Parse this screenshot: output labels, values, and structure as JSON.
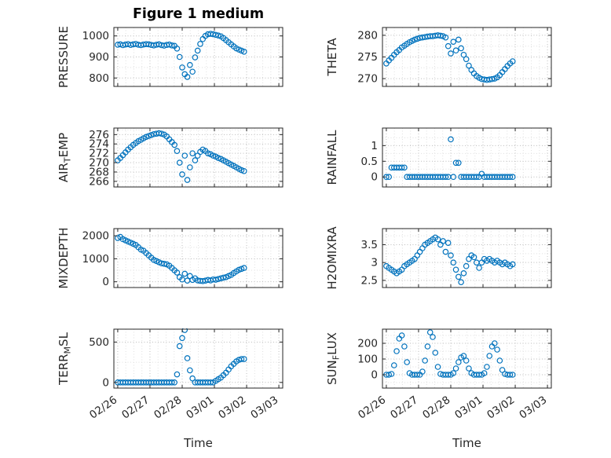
{
  "figure": {
    "title": "Figure 1 medium",
    "xlabel": "Time",
    "marker_color": "#0072BD",
    "axis_color": "#262626",
    "grid_color": "#b5b5b5",
    "minor_grid_color": "#dcdcdc"
  },
  "chart_data": {
    "type": "scatter",
    "title": "Figure 1 medium",
    "xlabel": "Time",
    "legend": "none",
    "grid": "on",
    "x_tick_labels": [
      "02/26",
      "02/27",
      "02/28",
      "03/01",
      "03/02",
      "03/03"
    ],
    "x_ticks": [
      0,
      1,
      2,
      3,
      4,
      5
    ],
    "xlim": [
      -0.12,
      5.12
    ],
    "x": [
      0,
      0.08,
      0.16,
      0.24,
      0.32,
      0.4,
      0.48,
      0.56,
      0.64,
      0.72,
      0.8,
      0.88,
      0.96,
      1.04,
      1.12,
      1.2,
      1.28,
      1.36,
      1.44,
      1.52,
      1.6,
      1.68,
      1.76,
      1.84,
      1.92,
      2,
      2.08,
      2.16,
      2.24,
      2.32,
      2.4,
      2.48,
      2.56,
      2.64,
      2.72,
      2.8,
      2.88,
      2.96,
      3.04,
      3.12,
      3.2,
      3.28,
      3.36,
      3.44,
      3.52,
      3.6,
      3.68,
      3.76,
      3.84,
      3.92
    ],
    "subplots": [
      {
        "name": "PRESSURE",
        "ylabel": [
          {
            "t": "PRESSURE"
          }
        ],
        "ylim": [
          760,
          1040
        ],
        "ytick_vals": [
          800,
          900,
          1000
        ],
        "ytick_labels": [
          "800",
          "900",
          "1000"
        ],
        "y": [
          958,
          960,
          956,
          959,
          961,
          957,
          960,
          962,
          958,
          956,
          959,
          961,
          960,
          957,
          955,
          958,
          960,
          956,
          954,
          957,
          959,
          955,
          953,
          940,
          900,
          850,
          818,
          805,
          862,
          830,
          898,
          930,
          962,
          985,
          1000,
          1008,
          1010,
          1008,
          1005,
          1002,
          998,
          990,
          980,
          970,
          960,
          950,
          941,
          935,
          930,
          925
        ]
      },
      {
        "name": "THETA",
        "ylabel": [
          {
            "t": "THETA"
          }
        ],
        "ylim": [
          268.2,
          281.8
        ],
        "ytick_vals": [
          270,
          275,
          280
        ],
        "ytick_labels": [
          "270",
          "275",
          "280"
        ],
        "y": [
          273.5,
          274.2,
          274.8,
          275.5,
          276.1,
          276.6,
          277.2,
          277.6,
          278.0,
          278.4,
          278.7,
          279.0,
          279.2,
          279.4,
          279.5,
          279.6,
          279.7,
          279.8,
          279.8,
          279.9,
          280.0,
          279.9,
          279.8,
          279.5,
          277.5,
          275.8,
          278.5,
          276.5,
          279.0,
          277.0,
          275.5,
          274.5,
          273.0,
          272.0,
          271.2,
          270.6,
          270.2,
          269.9,
          269.8,
          269.7,
          269.8,
          269.9,
          270.0,
          270.3,
          270.8,
          271.5,
          272.2,
          272.9,
          273.5,
          274.0
        ]
      },
      {
        "name": "AIR_TEMP",
        "ylabel": [
          {
            "t": "AIR"
          },
          {
            "t": "T",
            "sub": true
          },
          {
            "t": "EMP"
          }
        ],
        "ylim": [
          264.8,
          277.4
        ],
        "ytick_vals": [
          266,
          268,
          270,
          272,
          274,
          276
        ],
        "ytick_labels": [
          "266",
          "268",
          "270",
          "272",
          "274",
          "276"
        ],
        "y": [
          270.5,
          271.0,
          271.6,
          272.2,
          272.8,
          273.3,
          273.8,
          274.2,
          274.6,
          274.9,
          275.2,
          275.5,
          275.7,
          275.9,
          276.1,
          276.2,
          276.3,
          276.2,
          276.0,
          275.6,
          275.0,
          274.4,
          273.8,
          272.5,
          270.0,
          267.5,
          271.5,
          266.3,
          269.0,
          272.0,
          270.5,
          271.5,
          272.3,
          272.8,
          272.5,
          272.0,
          271.8,
          271.5,
          271.3,
          271.0,
          270.8,
          270.5,
          270.2,
          269.9,
          269.6,
          269.3,
          269.0,
          268.7,
          268.4,
          268.2
        ]
      },
      {
        "name": "RAINFALL",
        "ylabel": [
          {
            "t": "RAINFALL"
          }
        ],
        "ylim": [
          -0.32,
          1.56
        ],
        "ytick_vals": [
          0,
          0.5,
          1
        ],
        "ytick_labels": [
          "0",
          "0.5",
          "1"
        ],
        "y": [
          0,
          0,
          0.3,
          0.3,
          0.3,
          0.3,
          0.3,
          0.3,
          0,
          0,
          0,
          0,
          0,
          0,
          0,
          0,
          0,
          0,
          0,
          0,
          0,
          0,
          0,
          0,
          0,
          1.2,
          0,
          0.45,
          0.45,
          0,
          0,
          0,
          0,
          0,
          0,
          0,
          0,
          0.1,
          0,
          0,
          0,
          0,
          0,
          0,
          0,
          0,
          0,
          0,
          0,
          0
        ]
      },
      {
        "name": "MIXDEPTH",
        "ylabel": [
          {
            "t": "MIXDEPTH"
          }
        ],
        "ylim": [
          -250,
          2310
        ],
        "ytick_vals": [
          0,
          1000,
          2000
        ],
        "ytick_labels": [
          "0",
          "1000",
          "2000"
        ],
        "y": [
          1900,
          1950,
          1850,
          1800,
          1750,
          1700,
          1650,
          1600,
          1500,
          1400,
          1350,
          1250,
          1150,
          1050,
          950,
          900,
          850,
          800,
          780,
          760,
          700,
          600,
          500,
          400,
          200,
          100,
          350,
          50,
          250,
          80,
          150,
          60,
          40,
          30,
          50,
          80,
          60,
          100,
          90,
          120,
          150,
          180,
          200,
          250,
          300,
          380,
          450,
          520,
          560,
          600
        ]
      },
      {
        "name": "H2OMIXRA",
        "ylabel": [
          {
            "t": "H2OMIXRA"
          }
        ],
        "ylim": [
          2.3,
          3.95
        ],
        "ytick_vals": [
          2.5,
          3,
          3.5
        ],
        "ytick_labels": [
          "2.5",
          "3",
          "3.5"
        ],
        "y": [
          2.9,
          2.85,
          2.8,
          2.75,
          2.7,
          2.75,
          2.8,
          2.9,
          2.95,
          3.0,
          3.05,
          3.1,
          3.2,
          3.3,
          3.4,
          3.5,
          3.55,
          3.6,
          3.65,
          3.7,
          3.65,
          3.5,
          3.6,
          3.3,
          3.55,
          3.2,
          3.0,
          2.8,
          2.6,
          2.45,
          2.7,
          2.9,
          3.1,
          3.2,
          3.15,
          3.0,
          2.85,
          3.0,
          3.1,
          3.05,
          3.1,
          3.05,
          3.0,
          3.05,
          3.0,
          2.95,
          3.0,
          2.95,
          2.9,
          2.95
        ]
      },
      {
        "name": "TERR_MSL",
        "ylabel": [
          {
            "t": "TERR"
          },
          {
            "t": "M",
            "sub": true
          },
          {
            "t": "SL"
          }
        ],
        "ylim": [
          -70,
          660
        ],
        "ytick_vals": [
          0,
          500
        ],
        "ytick_labels": [
          "0",
          "500"
        ],
        "y": [
          0,
          0,
          0,
          0,
          0,
          0,
          0,
          0,
          0,
          0,
          0,
          0,
          0,
          0,
          0,
          0,
          0,
          0,
          0,
          0,
          0,
          0,
          0,
          100,
          450,
          550,
          650,
          300,
          150,
          50,
          0,
          0,
          0,
          0,
          0,
          0,
          0,
          0,
          20,
          40,
          60,
          90,
          120,
          160,
          200,
          230,
          260,
          280,
          290,
          290
        ]
      },
      {
        "name": "SUN_FLUX",
        "ylabel": [
          {
            "t": "SUN"
          },
          {
            "t": "F",
            "sub": true
          },
          {
            "t": "LUX"
          }
        ],
        "ylim": [
          -85,
          290
        ],
        "ytick_vals": [
          0,
          100,
          200
        ],
        "ytick_labels": [
          "0",
          "100",
          "200"
        ],
        "y": [
          0,
          0,
          5,
          60,
          150,
          230,
          250,
          180,
          80,
          10,
          0,
          0,
          0,
          0,
          20,
          90,
          180,
          270,
          240,
          140,
          50,
          5,
          0,
          0,
          0,
          0,
          10,
          40,
          80,
          110,
          120,
          90,
          40,
          10,
          0,
          0,
          0,
          0,
          10,
          50,
          120,
          180,
          200,
          160,
          90,
          30,
          5,
          0,
          0,
          0
        ]
      }
    ]
  }
}
